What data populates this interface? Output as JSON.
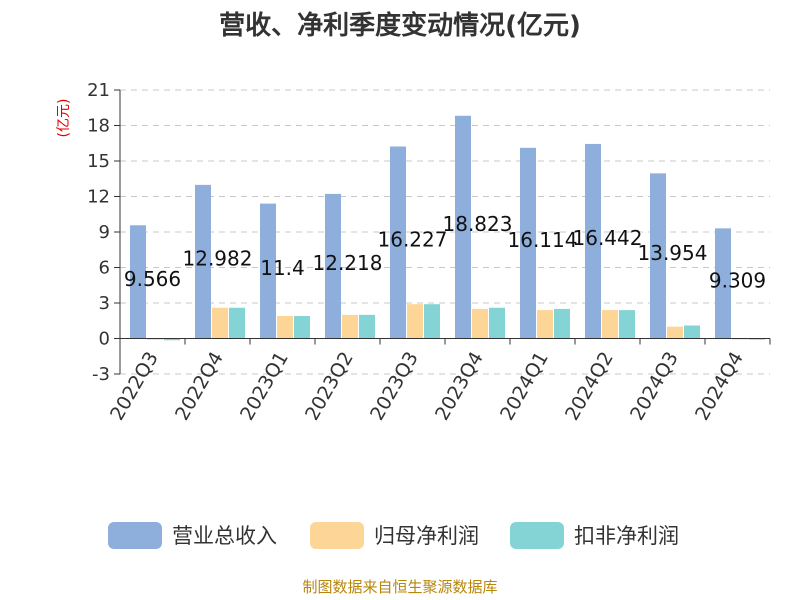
{
  "chart_data": {
    "type": "bar",
    "title": "营收、净利季度变动情况(亿元)",
    "ylabel": "(亿元)",
    "xlabel": "",
    "ylim": [
      -3,
      21
    ],
    "yticks": [
      -3,
      0,
      3,
      6,
      9,
      12,
      15,
      18,
      21
    ],
    "ytick_labels": [
      "-3",
      "0",
      "3",
      "6",
      "9",
      "12",
      "15",
      "18",
      "21"
    ],
    "grid": true,
    "legend_position": "bottom",
    "categories": [
      "2022Q3",
      "2022Q4",
      "2023Q1",
      "2023Q2",
      "2023Q3",
      "2023Q4",
      "2024Q1",
      "2024Q2",
      "2024Q3",
      "2024Q4"
    ],
    "series": [
      {
        "name": "营业总收入",
        "color": "#8eaedc",
        "values": [
          9.566,
          12.982,
          11.4,
          12.218,
          16.227,
          18.823,
          16.114,
          16.442,
          13.954,
          9.309
        ],
        "labels": [
          "9.566",
          "12.982",
          "11.4",
          "12.218",
          "16.227",
          "18.823",
          "16.114",
          "16.442",
          "13.954",
          "9.309"
        ]
      },
      {
        "name": "归母净利润",
        "color": "#fdd596",
        "values": [
          -0.1,
          2.6,
          1.9,
          2.0,
          2.9,
          2.5,
          2.4,
          2.4,
          1.0,
          -0.05
        ]
      },
      {
        "name": "扣非净利润",
        "color": "#84d4d5",
        "values": [
          -0.15,
          2.6,
          1.9,
          2.0,
          2.9,
          2.6,
          2.5,
          2.4,
          1.1,
          -0.1
        ]
      }
    ],
    "source": "制图数据来自恒生聚源数据库"
  }
}
